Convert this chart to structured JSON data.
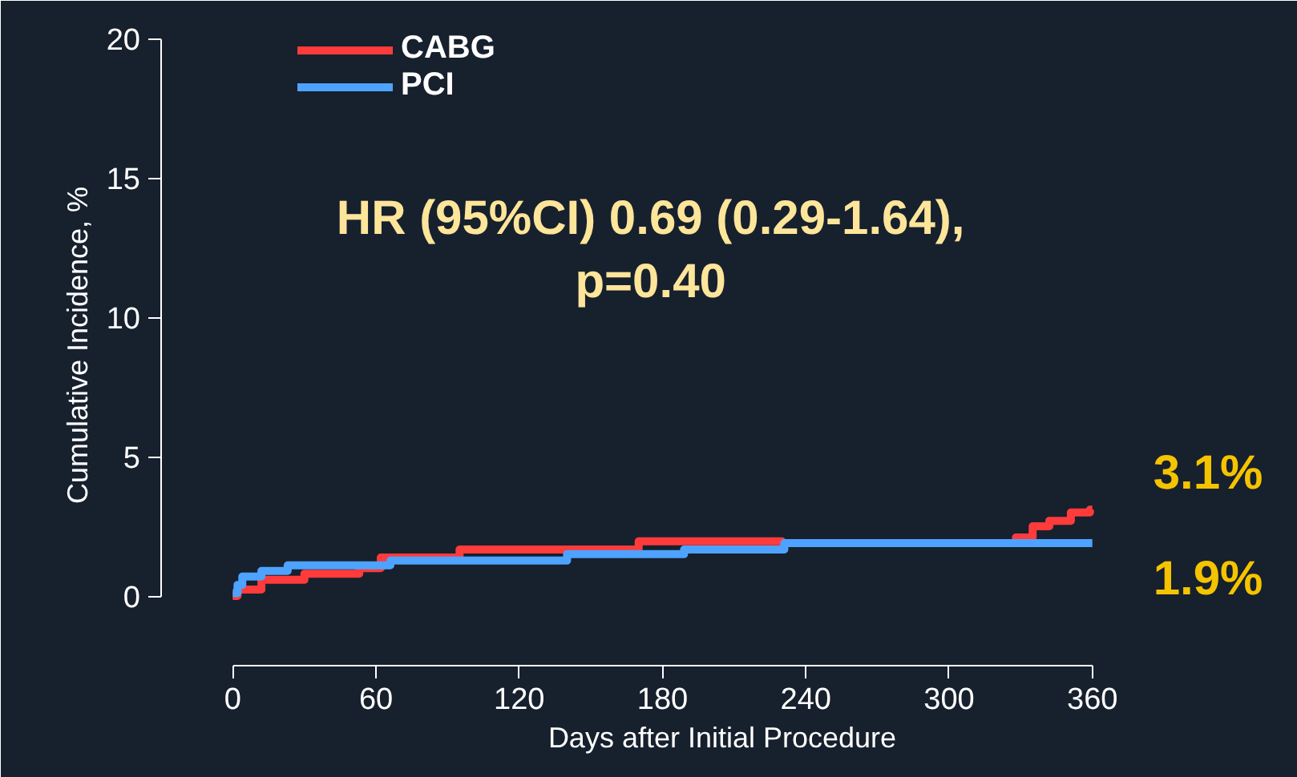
{
  "chart_data": {
    "type": "step",
    "xlabel": "Days after Initial Procedure",
    "ylabel": "Cumulative Incidence, %",
    "xlim": [
      -30,
      440
    ],
    "ylim": [
      -2.5,
      20.5
    ],
    "xticks": [
      0,
      60,
      120,
      180,
      240,
      300,
      360
    ],
    "yticks": [
      0,
      5,
      10,
      15,
      20
    ],
    "grid": false,
    "legend": "top left",
    "series": [
      {
        "name": "CABG",
        "color": "#ff3b3b",
        "x": [
          0,
          2,
          12,
          30,
          53,
          62,
          95,
          170,
          230,
          328,
          335,
          342,
          351,
          359,
          360
        ],
        "values": [
          0,
          0.23,
          0.58,
          0.8,
          1.0,
          1.38,
          1.67,
          1.96,
          1.9,
          2.1,
          2.5,
          2.7,
          3.0,
          3.1,
          3.1
        ]
      },
      {
        "name": "PCI",
        "color": "#4da3ff",
        "x": [
          0,
          2,
          4,
          12,
          23,
          66,
          140,
          189,
          231,
          360
        ],
        "values": [
          0.1,
          0.4,
          0.7,
          0.9,
          1.1,
          1.27,
          1.5,
          1.67,
          1.9,
          1.9
        ]
      }
    ],
    "annotations": [
      "HR (95%CI) 0.69 (0.29-1.64),\np=0.40",
      {
        "text": "3.1%",
        "x": 360,
        "y": 3.1
      },
      {
        "text": "1.9%",
        "x": 360,
        "y": 1.9
      }
    ]
  }
}
